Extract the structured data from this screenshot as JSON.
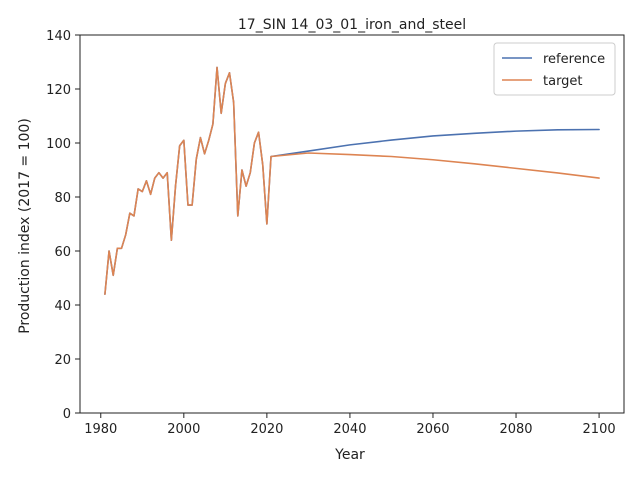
{
  "chart_data": {
    "type": "line",
    "title": "17_SIN 14_03_01_iron_and_steel",
    "xlabel": "Year",
    "ylabel": "Production index (2017 = 100)",
    "xlim": [
      1975,
      2106
    ],
    "ylim": [
      0,
      140
    ],
    "x_ticks": [
      1980,
      2000,
      2020,
      2040,
      2060,
      2080,
      2100
    ],
    "y_ticks": [
      0,
      20,
      40,
      60,
      80,
      100,
      120,
      140
    ],
    "grid": false,
    "legend_position": "top-right",
    "history": {
      "x": [
        1981,
        1982,
        1983,
        1984,
        1985,
        1986,
        1987,
        1988,
        1989,
        1990,
        1991,
        1992,
        1993,
        1994,
        1995,
        1996,
        1997,
        1998,
        1999,
        2000,
        2001,
        2002,
        2003,
        2004,
        2005,
        2006,
        2007,
        2008,
        2009,
        2010,
        2011,
        2012,
        2013,
        2014,
        2015,
        2016,
        2017,
        2018,
        2019,
        2020,
        2021
      ],
      "y": [
        44,
        60,
        51,
        61,
        61,
        66,
        74,
        73,
        83,
        82,
        86,
        81,
        87,
        89,
        87,
        89,
        64,
        84,
        99,
        101,
        77,
        77,
        94,
        102,
        96,
        101,
        107,
        128,
        111,
        122,
        126,
        115,
        73,
        90,
        84,
        89,
        100,
        104,
        92,
        70,
        95
      ]
    },
    "series": [
      {
        "name": "reference",
        "color": "#4c72b0",
        "x": [
          2021,
          2030,
          2040,
          2050,
          2060,
          2070,
          2080,
          2090,
          2100
        ],
        "y": [
          95,
          97,
          99.3,
          101.1,
          102.6,
          103.6,
          104.4,
          104.9,
          105
        ]
      },
      {
        "name": "target",
        "color": "#dd8452",
        "x": [
          2021,
          2030,
          2040,
          2050,
          2060,
          2070,
          2080,
          2090,
          2100
        ],
        "y": [
          95,
          96.3,
          95.7,
          95,
          93.8,
          92.3,
          90.6,
          88.9,
          87
        ]
      }
    ]
  }
}
